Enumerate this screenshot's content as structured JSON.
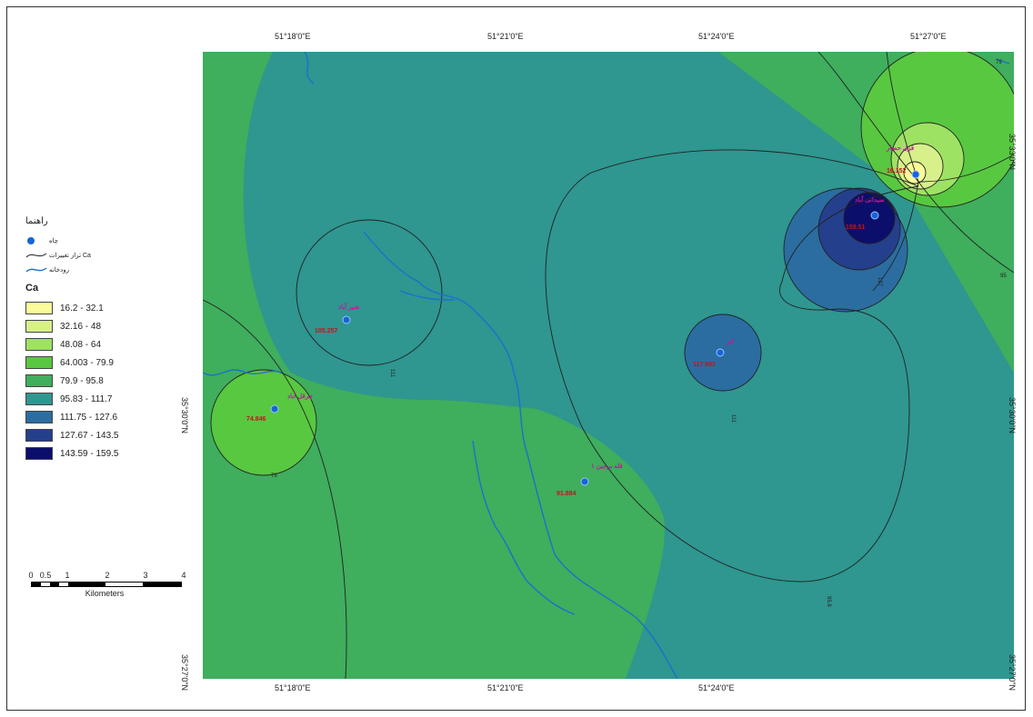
{
  "map": {
    "top_coords": [
      "51°18'0\"E",
      "51°21'0\"E",
      "51°24'0\"E",
      "51°27'0\"E"
    ],
    "bottom_coords": [
      "51°18'0\"E",
      "51°21'0\"E",
      "51°24'0\"E"
    ],
    "left_coords": [
      "35°30'0\"N",
      "35°27'0\"N"
    ],
    "right_coords": [
      "35°33'0\"N",
      "35°30'0\"N",
      "35°27'0\"N"
    ],
    "colors": {
      "class_1": "#fbfb9a",
      "class_2": "#d8f08a",
      "class_3": "#9ee264",
      "class_4": "#58c840",
      "class_5": "#3fae5d",
      "class_6": "#2f9690",
      "class_7": "#2b6da0",
      "class_8": "#243f8c",
      "class_9": "#0c0e6c",
      "river": "#1a72cc",
      "contour": "#222222",
      "station": "#1565d8"
    },
    "stations": [
      {
        "name": "شیر آباد",
        "value": "105.257"
      },
      {
        "name": "چرقل آباد",
        "value": "74.846"
      },
      {
        "name": "قله برجین ۱",
        "value": "91.884"
      },
      {
        "name": "اتو",
        "value": "117.891"
      },
      {
        "name": "سیدانی آباد",
        "value": "159.51"
      },
      {
        "name": "قزل حصار",
        "value": "16.152"
      }
    ]
  },
  "legend": {
    "title": "راهنما",
    "items": [
      {
        "icon": "well-point-icon",
        "label": "چاه"
      },
      {
        "icon": "isoline-icon",
        "label": "تراز تغییرات Ca"
      },
      {
        "icon": "river-line-icon",
        "label": "رودخانه"
      }
    ],
    "ca_title": "Ca",
    "classes": [
      {
        "label": "16.2 - 32.1",
        "color": "#fbfb9a"
      },
      {
        "label": "32.16 - 48",
        "color": "#d8f08a"
      },
      {
        "label": "48.08 - 64",
        "color": "#9ee264"
      },
      {
        "label": "64.003 - 79.9",
        "color": "#58c840"
      },
      {
        "label": "79.9 - 95.8",
        "color": "#3fae5d"
      },
      {
        "label": "95.83 - 111.7",
        "color": "#2f9690"
      },
      {
        "label": "111.75 - 127.6",
        "color": "#2b6da0"
      },
      {
        "label": "127.67 - 143.5",
        "color": "#243f8c"
      },
      {
        "label": "143.59 - 159.5",
        "color": "#0c0e6c"
      }
    ]
  },
  "scalebar": {
    "ticks": [
      "0",
      "0.5",
      "1",
      "2",
      "3",
      "4"
    ],
    "caption": "Kilometers"
  }
}
